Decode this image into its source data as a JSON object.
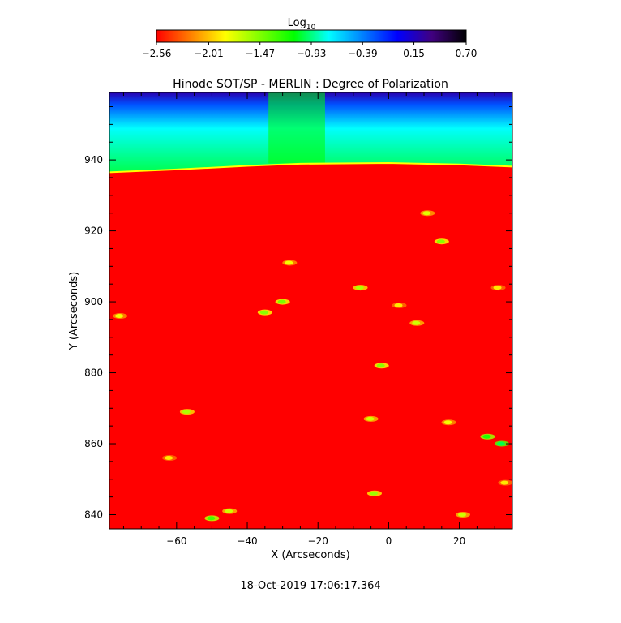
{
  "chart_data": {
    "type": "heatmap",
    "title": "Hinode SOT/SP - MERLIN : Degree of Polarization",
    "xlabel": "X (Arcseconds)",
    "ylabel": "Y (Arcseconds)",
    "xlim": [
      -79,
      35
    ],
    "ylim": [
      836,
      959
    ],
    "x_ticks": [
      -60,
      -40,
      -20,
      0,
      20
    ],
    "x_tick_labels": [
      "-60",
      "-40",
      "-20",
      "0",
      "20"
    ],
    "y_ticks": [
      840,
      860,
      880,
      900,
      920,
      940
    ],
    "y_tick_labels": [
      "840",
      "860",
      "880",
      "900",
      "920",
      "940"
    ],
    "colorbar": {
      "label": "Log",
      "label_subscript": "10",
      "min": -2.56,
      "max": 0.7,
      "tick_values": [
        -2.56,
        -2.01,
        -1.47,
        -0.93,
        -0.39,
        0.15,
        0.7
      ],
      "tick_labels": [
        "-2.56",
        "-2.01",
        "-1.47",
        "-0.93",
        "-0.39",
        "0.15",
        "0.70"
      ],
      "colors": [
        "#ff0000",
        "#ff8000",
        "#ffff00",
        "#80ff00",
        "#00ff00",
        "#00ffff",
        "#0080ff",
        "#0000ff",
        "#400080",
        "#000000"
      ]
    },
    "regions": {
      "disk_value": -2.56,
      "limb_y": [
        [
          -79,
          936.5
        ],
        [
          -60,
          937.3
        ],
        [
          -40,
          938.3
        ],
        [
          -25,
          938.9
        ],
        [
          0,
          939.1
        ],
        [
          20,
          938.7
        ],
        [
          35,
          938.1
        ]
      ],
      "offlimb_near_value": -1.0,
      "offlimb_far_value": -0.25
    },
    "features": [
      {
        "x": 15,
        "y": 917,
        "value": -1.5
      },
      {
        "x": 11,
        "y": 925,
        "value": -1.75
      },
      {
        "x": -30,
        "y": 900,
        "value": -1.45
      },
      {
        "x": -35,
        "y": 897,
        "value": -1.5
      },
      {
        "x": -8,
        "y": 904,
        "value": -1.6
      },
      {
        "x": -2,
        "y": 882,
        "value": -1.5
      },
      {
        "x": 8,
        "y": 894,
        "value": -1.7
      },
      {
        "x": 28,
        "y": 862,
        "value": -1.2
      },
      {
        "x": 32,
        "y": 860,
        "value": -1.0
      },
      {
        "x": -50,
        "y": 839,
        "value": -1.3
      },
      {
        "x": -45,
        "y": 841,
        "value": -1.7
      },
      {
        "x": -4,
        "y": 846,
        "value": -1.55
      },
      {
        "x": 21,
        "y": 840,
        "value": -1.7
      },
      {
        "x": -57,
        "y": 869,
        "value": -1.6
      },
      {
        "x": -76,
        "y": 896,
        "value": -1.8
      },
      {
        "x": -5,
        "y": 867,
        "value": -1.7
      },
      {
        "x": 17,
        "y": 866,
        "value": -1.8
      },
      {
        "x": -28,
        "y": 911,
        "value": -1.8
      },
      {
        "x": 33,
        "y": 849,
        "value": -1.9
      },
      {
        "x": -62,
        "y": 856,
        "value": -1.9
      },
      {
        "x": 3,
        "y": 899,
        "value": -1.9
      },
      {
        "x": 31,
        "y": 904,
        "value": -1.9
      }
    ]
  },
  "footer": {
    "timestamp": "18-Oct-2019 17:06:17.364"
  }
}
